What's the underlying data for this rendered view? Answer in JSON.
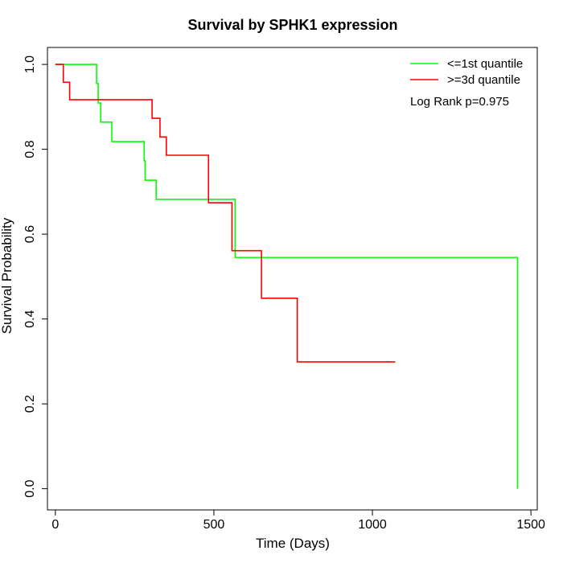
{
  "chart_data": {
    "type": "line",
    "title": "Survival by SPHK1 expression",
    "xlabel": "Time (Days)",
    "ylabel": "Survival Probability",
    "xlim": [
      -25,
      1520
    ],
    "ylim": [
      -0.05,
      1.04
    ],
    "xticks": [
      0,
      500,
      1000,
      1500
    ],
    "yticks": [
      0.0,
      0.2,
      0.4,
      0.6,
      0.8,
      1.0
    ],
    "xtick_labels": [
      "0",
      "500",
      "1000",
      "1500"
    ],
    "ytick_labels": [
      "0.0",
      "0.2",
      "0.4",
      "0.6",
      "0.8",
      "1.0"
    ],
    "grid": false,
    "legend_position": "top-right",
    "annotation": "Log Rank p=0.975",
    "series": [
      {
        "name": "<=1st quantile",
        "color": "#00ff00",
        "step": "post",
        "points": [
          [
            0,
            1.0
          ],
          [
            130,
            1.0
          ],
          [
            130,
            0.955
          ],
          [
            135,
            0.955
          ],
          [
            135,
            0.909
          ],
          [
            143,
            0.909
          ],
          [
            143,
            0.864
          ],
          [
            178,
            0.864
          ],
          [
            178,
            0.818
          ],
          [
            280,
            0.818
          ],
          [
            280,
            0.773
          ],
          [
            283,
            0.773
          ],
          [
            283,
            0.727
          ],
          [
            318,
            0.727
          ],
          [
            318,
            0.682
          ],
          [
            567,
            0.682
          ],
          [
            567,
            0.545
          ],
          [
            1458,
            0.545
          ],
          [
            1458,
            0.0
          ]
        ]
      },
      {
        "name": ">=3d quantile",
        "color": "#ff0000",
        "step": "post",
        "points": [
          [
            0,
            1.0
          ],
          [
            25,
            1.0
          ],
          [
            25,
            0.958
          ],
          [
            45,
            0.958
          ],
          [
            45,
            0.917
          ],
          [
            305,
            0.917
          ],
          [
            305,
            0.873
          ],
          [
            330,
            0.873
          ],
          [
            330,
            0.829
          ],
          [
            350,
            0.829
          ],
          [
            350,
            0.786
          ],
          [
            483,
            0.786
          ],
          [
            483,
            0.674
          ],
          [
            557,
            0.674
          ],
          [
            557,
            0.561
          ],
          [
            650,
            0.561
          ],
          [
            650,
            0.449
          ],
          [
            763,
            0.449
          ],
          [
            763,
            0.299
          ],
          [
            1072,
            0.299
          ]
        ]
      }
    ]
  }
}
